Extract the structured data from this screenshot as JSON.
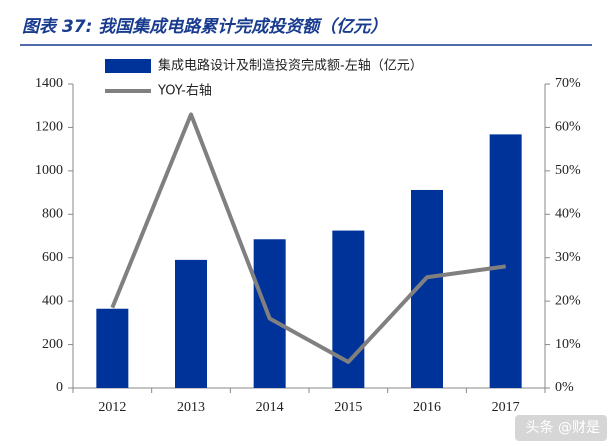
{
  "chart_data": {
    "type": "bar",
    "title": "图表 37: 我国集成电路累计完成投资额（亿元）",
    "categories": [
      "2012",
      "2013",
      "2014",
      "2015",
      "2016",
      "2017"
    ],
    "series": [
      {
        "name": "集成电路设计及制造投资完成额-左轴（亿元）",
        "color": "#003399",
        "type": "bar",
        "values": [
          365,
          590,
          685,
          725,
          912,
          1168
        ]
      },
      {
        "name": "YOY-右轴",
        "color": "#808080",
        "type": "line",
        "axis": "y2",
        "values": [
          18.5,
          63,
          16,
          6,
          25.5,
          28
        ]
      }
    ],
    "ylim": [
      0,
      1400
    ],
    "yticks": [
      0,
      200,
      400,
      600,
      800,
      1000,
      1200,
      1400
    ],
    "y2lim": [
      0,
      70
    ],
    "y2ticks": [
      {
        "value": 0,
        "label": "0%"
      },
      {
        "value": 10,
        "label": "10%"
      },
      {
        "value": 20,
        "label": "20%"
      },
      {
        "value": 30,
        "label": "30%"
      },
      {
        "value": 40,
        "label": "40%"
      },
      {
        "value": 50,
        "label": "50%"
      },
      {
        "value": 60,
        "label": "60%"
      },
      {
        "value": 70,
        "label": "70%"
      }
    ],
    "watermark": "头条 @财是"
  }
}
